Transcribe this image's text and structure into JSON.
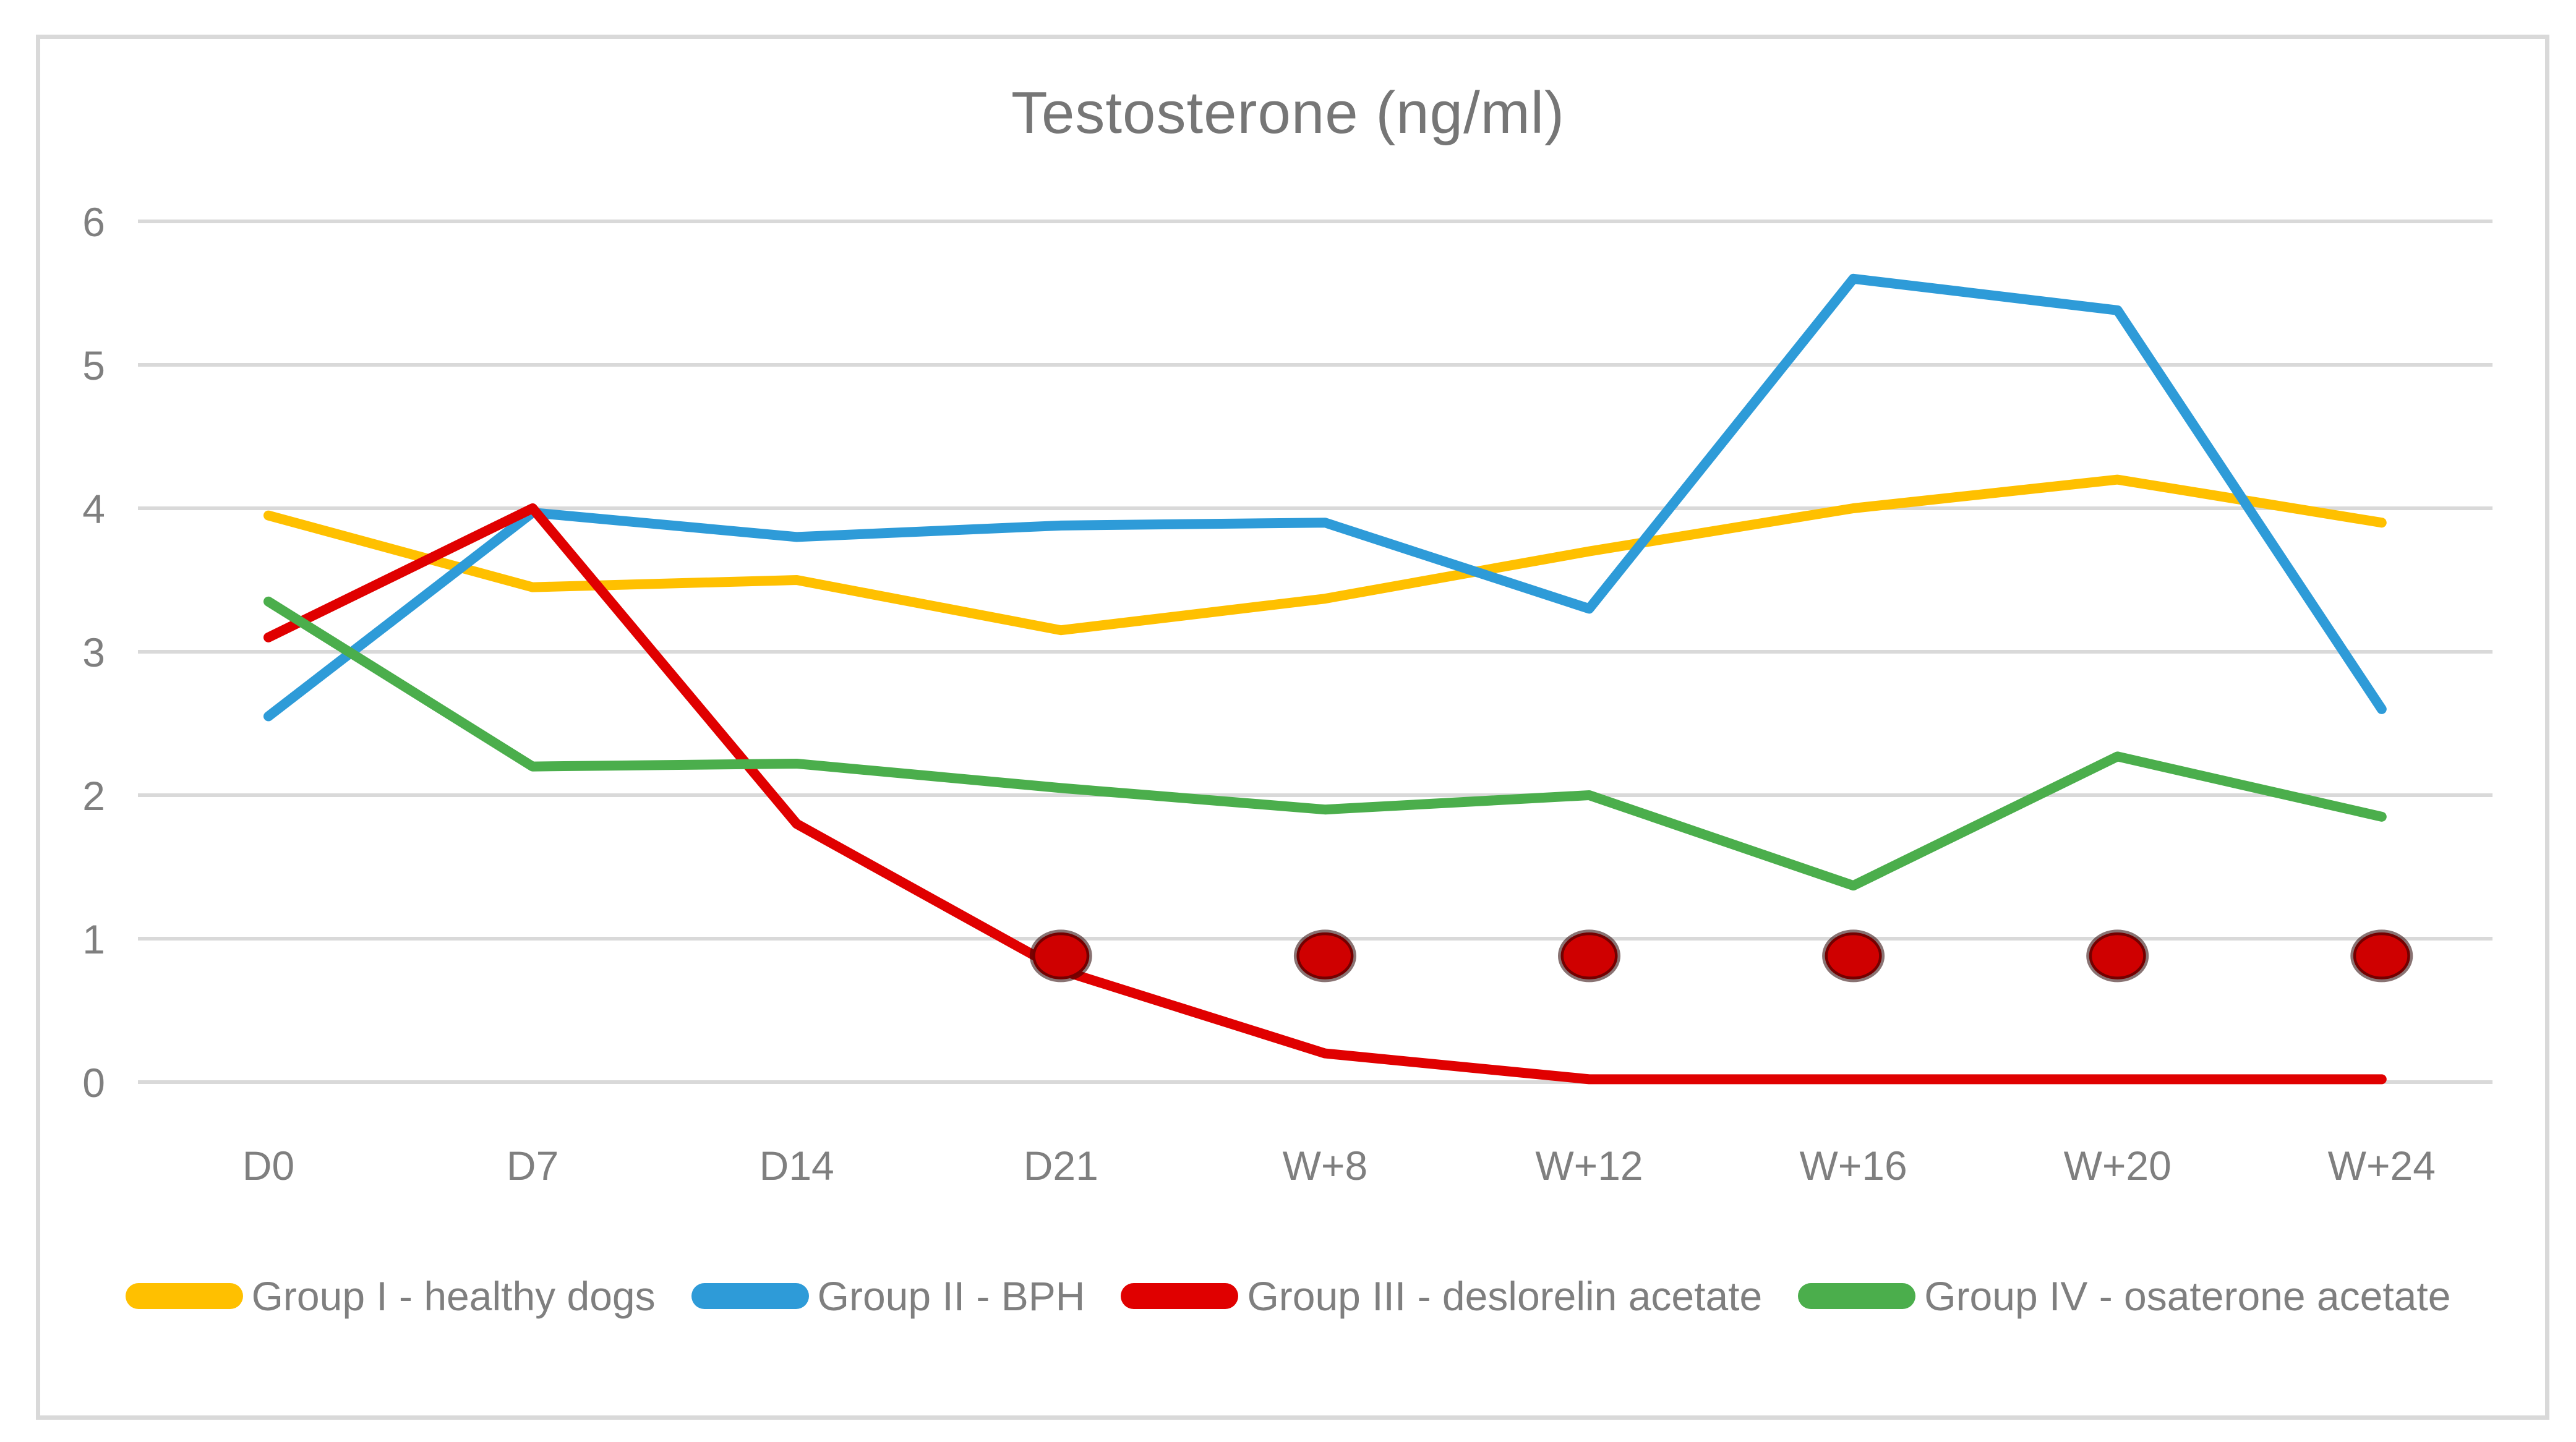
{
  "chart_data": {
    "type": "line",
    "title": "Testosterone (ng/ml)",
    "categories": [
      "D0",
      "D7",
      "D14",
      "D21",
      "W+8",
      "W+12",
      "W+16",
      "W+20",
      "W+24"
    ],
    "y_ticks": [
      "0",
      "1",
      "2",
      "3",
      "4",
      "5",
      "6"
    ],
    "ylim": [
      0,
      6
    ],
    "grid": "horizontal-only",
    "legend_position": "bottom",
    "xlabel": "",
    "ylabel": "",
    "series": [
      {
        "name": "Group I - healthy dogs",
        "color": "#FFC000",
        "values": [
          3.95,
          3.45,
          3.5,
          3.15,
          3.37,
          3.7,
          4.0,
          4.2,
          3.9
        ]
      },
      {
        "name": "Group II - BPH",
        "color": "#2E9BD8",
        "values": [
          2.55,
          3.97,
          3.8,
          3.88,
          3.9,
          3.3,
          5.6,
          5.38,
          2.6
        ]
      },
      {
        "name": "Group III - deslorelin acetate",
        "color": "#E00000",
        "values": [
          3.1,
          4.0,
          1.8,
          0.78,
          0.2,
          0.02,
          0.02,
          0.02,
          0.02
        ]
      },
      {
        "name": "Group IV - osaterone acetate",
        "color": "#4BAE4C",
        "values": [
          3.35,
          2.2,
          2.22,
          2.05,
          1.9,
          2.0,
          1.37,
          2.27,
          1.85
        ]
      }
    ],
    "significance_markers": {
      "description": "red oval markers above Group III line",
      "color": "#CF0000",
      "categories": [
        "D21",
        "W+8",
        "W+12",
        "W+16",
        "W+20",
        "W+24"
      ],
      "value": 0.88
    }
  },
  "colors": {
    "background": "#FFFFFF",
    "border": "#D9D9D9",
    "gridline": "#D9D9D9",
    "text": "#7F7F7F",
    "title_text": "#767676"
  }
}
